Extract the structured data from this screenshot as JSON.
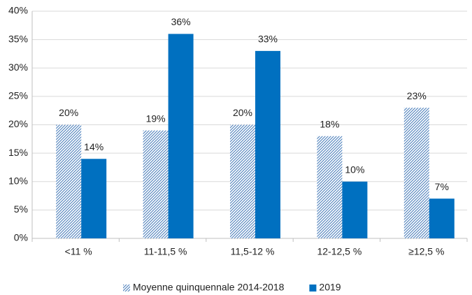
{
  "chart_data": {
    "type": "bar",
    "categories": [
      "<11 %",
      "11-11,5 %",
      "11,5-12 %",
      "12-12,5 %",
      "≥12,5 %"
    ],
    "series": [
      {
        "name": "Moyenne quinquennale 2014-2018",
        "color": "#4a7ebb",
        "fill": "hatch",
        "values": [
          20,
          19,
          20,
          18,
          23
        ],
        "value_labels": [
          "20%",
          "19%",
          "20%",
          "18%",
          "23%"
        ]
      },
      {
        "name": "2019",
        "color": "#0070c0",
        "fill": "solid",
        "values": [
          14,
          36,
          33,
          10,
          7
        ],
        "value_labels": [
          "14%",
          "36%",
          "33%",
          "10%",
          "7%"
        ]
      }
    ],
    "ylim": [
      0,
      40
    ],
    "yticks": [
      {
        "value": 0,
        "label": "0%"
      },
      {
        "value": 5,
        "label": "5%"
      },
      {
        "value": 10,
        "label": "10%"
      },
      {
        "value": 15,
        "label": "15%"
      },
      {
        "value": 20,
        "label": "20%"
      },
      {
        "value": 25,
        "label": "25%"
      },
      {
        "value": 30,
        "label": "30%"
      },
      {
        "value": 35,
        "label": "35%"
      },
      {
        "value": 40,
        "label": "40%"
      }
    ],
    "grid": true,
    "legend": "bottom"
  }
}
